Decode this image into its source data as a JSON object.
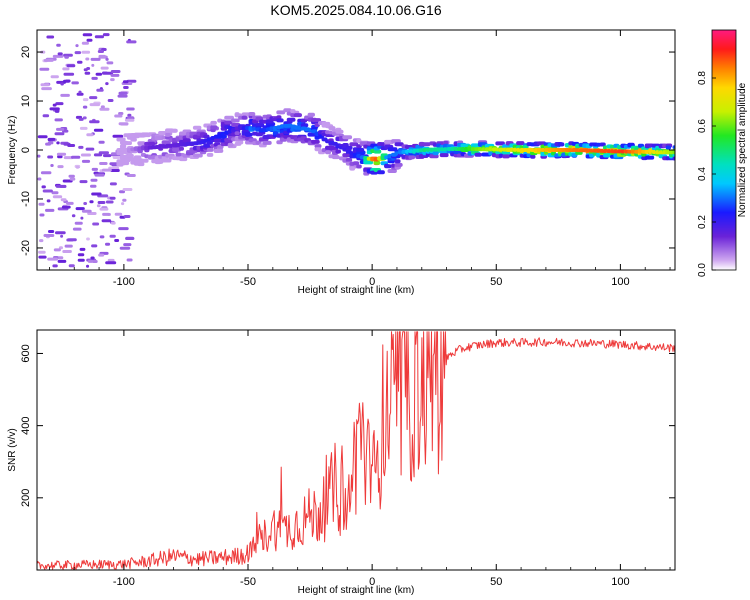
{
  "title": "KOM5.2025.084.10.06.G16",
  "chart_data": [
    {
      "type": "heatmap",
      "title": "KOM5.2025.084.10.06.G16",
      "xlabel": "Height of straight line (km)",
      "ylabel": "Frequency (Hz)",
      "xlim": [
        -135,
        122
      ],
      "ylim": [
        -24.5,
        24.5
      ],
      "xticks": [
        -100,
        -50,
        0,
        50,
        100
      ],
      "yticks": [
        -20,
        -10,
        0,
        10,
        20
      ],
      "colorbar": {
        "label": "Normalized spectral amplitude",
        "range": [
          0,
          1
        ],
        "ticks": [
          0.0,
          0.2,
          0.4,
          0.6,
          0.8
        ],
        "colormap": "rainbow (magenta→red)"
      },
      "ridge": {
        "description": "frequency of spectral maximum vs height",
        "x": [
          -100,
          -90,
          -80,
          -70,
          -60,
          -55,
          -50,
          -45,
          -40,
          -35,
          -30,
          -25,
          -20,
          -15,
          -10,
          -5,
          0,
          5,
          10,
          20,
          30,
          40,
          60,
          80,
          100,
          122
        ],
        "y": [
          0,
          0.5,
          1,
          1.5,
          3.5,
          4.5,
          4.5,
          4,
          4.5,
          5,
          4.5,
          4,
          2,
          1,
          -0.5,
          -1.5,
          -2,
          -1.5,
          -0.5,
          0,
          0.2,
          0.2,
          0,
          0,
          -0.3,
          -0.5
        ],
        "amplitude": [
          0.05,
          0.15,
          0.15,
          0.2,
          0.25,
          0.15,
          0.3,
          0.25,
          0.3,
          0.3,
          0.3,
          0.3,
          0.2,
          0.2,
          0.2,
          0.3,
          0.95,
          0.3,
          0.3,
          0.5,
          0.45,
          0.6,
          0.75,
          0.85,
          0.9,
          0.6
        ]
      }
    },
    {
      "type": "line",
      "xlabel": "Height of straight line (km)",
      "ylabel": "SNR (v/v)",
      "xlim": [
        -135,
        122
      ],
      "ylim": [
        0,
        665
      ],
      "xticks": [
        -100,
        -50,
        0,
        50,
        100
      ],
      "yticks": [
        200,
        400,
        600
      ],
      "color": "#ee3a3a",
      "series": [
        {
          "name": "SNR",
          "x": [
            -135,
            -120,
            -100,
            -90,
            -80,
            -70,
            -60,
            -55,
            -50,
            -45,
            -40,
            -35,
            -30,
            -25,
            -20,
            -15,
            -10,
            -5,
            0,
            5,
            10,
            15,
            20,
            25,
            30,
            35,
            40,
            45,
            50,
            60,
            70,
            80,
            90,
            100,
            110,
            122
          ],
          "y": [
            12,
            14,
            16,
            25,
            38,
            30,
            35,
            38,
            45,
            80,
            120,
            110,
            130,
            150,
            160,
            230,
            160,
            400,
            230,
            440,
            460,
            500,
            540,
            570,
            590,
            610,
            620,
            625,
            630,
            630,
            632,
            630,
            628,
            625,
            620,
            615
          ]
        }
      ]
    }
  ]
}
